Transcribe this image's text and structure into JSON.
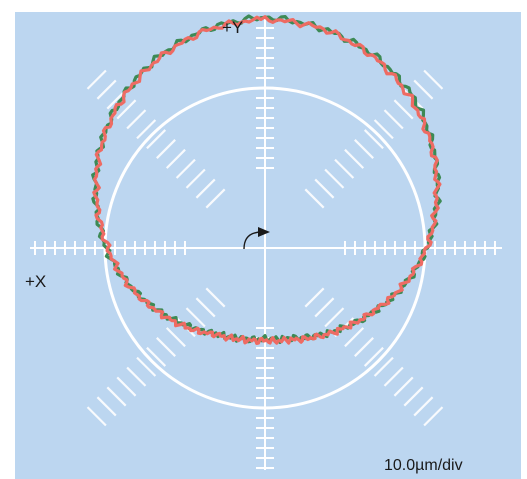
{
  "chart_data": {
    "type": "line",
    "title": "",
    "xlabel": "+X",
    "ylabel": "+Y",
    "scale": "10.0µm/div",
    "grid": false,
    "colors": {
      "background": "#bcd6f0",
      "axes": "#ffffff",
      "series_green": "#3d8a55",
      "series_red": "#ee6b63",
      "reference": "#ffffff",
      "direction_arrow": "#1a1a1a"
    },
    "series": [
      {
        "color_key": "series_green",
        "points": [
          [
            0,
            16.8
          ],
          [
            15,
            15.9
          ],
          [
            30,
            14.6
          ],
          [
            45,
            12.2
          ],
          [
            60,
            8.3
          ],
          [
            75,
            4.3
          ],
          [
            90,
            0.4
          ],
          [
            105,
            -3.8
          ],
          [
            120,
            -8.0
          ],
          [
            135,
            -11.4
          ],
          [
            150,
            -14.0
          ],
          [
            165,
            -15.9
          ],
          [
            180,
            -16.5
          ],
          [
            195,
            -15.8
          ],
          [
            210,
            -14.6
          ],
          [
            225,
            -12.0
          ],
          [
            240,
            -8.6
          ],
          [
            255,
            -4.6
          ],
          [
            270,
            -0.2
          ],
          [
            285,
            3.6
          ],
          [
            300,
            7.6
          ],
          [
            315,
            11.0
          ],
          [
            330,
            13.9
          ],
          [
            345,
            15.8
          ],
          [
            360,
            16.8
          ]
        ]
      },
      {
        "color_key": "series_red",
        "points": [
          [
            0,
            16.3
          ],
          [
            15,
            15.9
          ],
          [
            30,
            14.2
          ],
          [
            45,
            11.4
          ],
          [
            60,
            8.1
          ],
          [
            75,
            4.1
          ],
          [
            90,
            0.4
          ],
          [
            105,
            -4.0
          ],
          [
            120,
            -8.2
          ],
          [
            135,
            -11.3
          ],
          [
            150,
            -13.7
          ],
          [
            165,
            -15.5
          ],
          [
            180,
            -16.1
          ],
          [
            195,
            -15.6
          ],
          [
            210,
            -14.4
          ],
          [
            225,
            -11.5
          ],
          [
            240,
            -8.3
          ],
          [
            255,
            -4.4
          ],
          [
            270,
            -0.7
          ],
          [
            285,
            3.3
          ],
          [
            300,
            7.4
          ],
          [
            315,
            10.8
          ],
          [
            330,
            13.5
          ],
          [
            345,
            15.6
          ],
          [
            360,
            16.3
          ]
        ]
      }
    ]
  }
}
